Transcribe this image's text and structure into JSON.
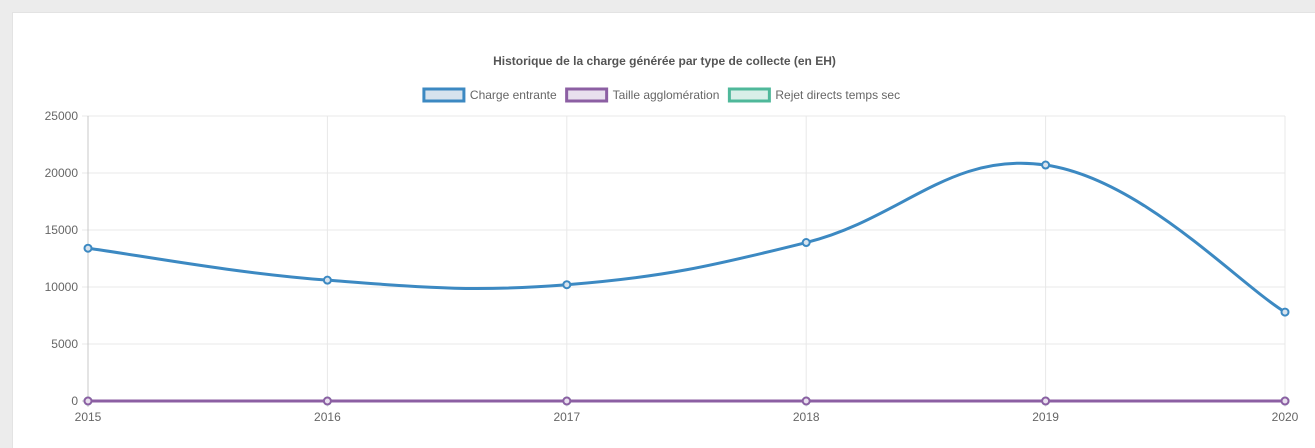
{
  "chart_data": {
    "type": "line",
    "title": "Historique de la charge générée par type de collecte (en EH)",
    "x": [
      "2015",
      "2016",
      "2017",
      "2018",
      "2019",
      "2020"
    ],
    "series": [
      {
        "name": "Charge entrante",
        "color": "#3c89c2",
        "fill": "#d7e3ee",
        "values": [
          13400,
          10600,
          10200,
          13900,
          20700,
          7800
        ]
      },
      {
        "name": "Taille agglomération",
        "color": "#8c5fa3",
        "fill": "#e8e0ee",
        "values": [
          0,
          0,
          0,
          0,
          0,
          0
        ]
      },
      {
        "name": "Rejet directs temps sec",
        "color": "#4fb89a",
        "fill": "#d9efe8",
        "values": [
          0,
          0,
          0,
          0,
          0,
          0
        ]
      }
    ],
    "yticks": [
      "0",
      "5000",
      "10000",
      "15000",
      "20000",
      "25000"
    ],
    "ylim": [
      0,
      25000
    ],
    "grid": true,
    "legend_position": "top"
  }
}
